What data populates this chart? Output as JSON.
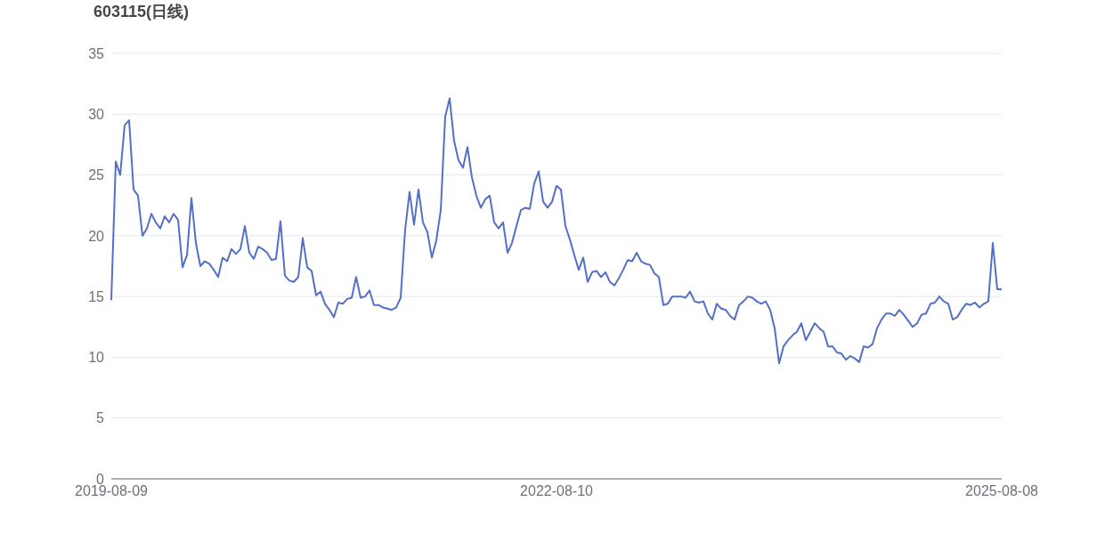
{
  "chart_data": {
    "type": "line",
    "title": "603115(日线)",
    "categories": [
      "2019-08-09",
      null,
      null,
      null,
      null,
      null,
      null,
      null,
      null,
      null,
      null,
      null,
      null,
      null,
      null,
      null,
      null,
      null,
      null,
      null,
      null,
      null,
      null,
      null,
      null,
      null,
      null,
      null,
      null,
      null,
      null,
      null,
      null,
      null,
      null,
      null,
      null,
      null,
      null,
      null,
      null,
      null,
      null,
      null,
      null,
      null,
      null,
      null,
      null,
      null,
      null,
      null,
      null,
      null,
      null,
      null,
      null,
      null,
      null,
      null,
      null,
      null,
      null,
      null,
      null,
      null,
      null,
      null,
      null,
      null,
      null,
      null,
      null,
      null,
      null,
      null,
      null,
      null,
      null,
      null,
      null,
      null,
      null,
      null,
      null,
      null,
      null,
      null,
      null,
      null,
      null,
      null,
      null,
      null,
      null,
      null,
      null,
      null,
      null,
      null,
      "2022-08-10",
      null,
      null,
      null,
      null,
      null,
      null,
      null,
      null,
      null,
      null,
      null,
      null,
      null,
      null,
      null,
      null,
      null,
      null,
      null,
      null,
      null,
      null,
      null,
      null,
      null,
      null,
      null,
      null,
      null,
      null,
      null,
      null,
      null,
      null,
      null,
      null,
      null,
      null,
      null,
      null,
      null,
      null,
      null,
      null,
      null,
      null,
      null,
      null,
      null,
      null,
      null,
      null,
      null,
      null,
      null,
      null,
      null,
      null,
      null,
      null,
      null,
      null,
      null,
      null,
      null,
      null,
      null,
      null,
      null,
      null,
      null,
      null,
      null,
      null,
      null,
      null,
      null,
      null,
      null,
      null,
      null,
      null,
      null,
      null,
      null,
      null,
      null,
      null,
      null,
      null,
      null,
      null,
      null,
      null,
      null,
      null,
      null,
      null,
      null,
      "2025-08-08"
    ],
    "series": [
      {
        "color": "#5470c6",
        "values": [
          14.7,
          26.1,
          25.0,
          29.1,
          29.5,
          23.8,
          23.3,
          20.0,
          20.6,
          21.8,
          21.1,
          20.6,
          21.6,
          21.1,
          21.8,
          21.3,
          17.4,
          18.4,
          23.1,
          19.4,
          17.5,
          17.9,
          17.7,
          17.2,
          16.6,
          18.2,
          17.9,
          18.9,
          18.5,
          18.9,
          20.8,
          18.6,
          18.1,
          19.1,
          18.9,
          18.6,
          18.0,
          18.1,
          21.2,
          16.7,
          16.3,
          16.2,
          16.6,
          19.8,
          17.4,
          17.1,
          15.1,
          15.4,
          14.4,
          13.9,
          13.3,
          14.5,
          14.4,
          14.8,
          14.9,
          16.6,
          14.9,
          15.0,
          15.5,
          14.3,
          14.3,
          14.1,
          14.0,
          13.9,
          14.1,
          14.9,
          20.5,
          23.6,
          20.9,
          23.8,
          21.1,
          20.3,
          18.2,
          19.6,
          22.1,
          29.8,
          31.3,
          27.8,
          26.2,
          25.6,
          27.3,
          24.8,
          23.3,
          22.3,
          23.0,
          23.3,
          21.1,
          20.6,
          21.1,
          18.6,
          19.4,
          20.8,
          22.1,
          22.3,
          22.2,
          24.3,
          25.3,
          22.8,
          22.3,
          22.8,
          24.1,
          23.8,
          20.8,
          19.7,
          18.4,
          17.2,
          18.2,
          16.2,
          17.0,
          17.1,
          16.6,
          17.0,
          16.2,
          15.9,
          16.5,
          17.2,
          18.0,
          17.9,
          18.6,
          17.9,
          17.7,
          17.6,
          16.9,
          16.6,
          14.3,
          14.4,
          15.0,
          15.0,
          15.0,
          14.9,
          15.4,
          14.6,
          14.5,
          14.6,
          13.6,
          13.1,
          14.4,
          14.0,
          13.9,
          13.4,
          13.1,
          14.3,
          14.6,
          15.0,
          14.9,
          14.6,
          14.4,
          14.6,
          13.9,
          12.4,
          9.5,
          10.9,
          11.4,
          11.8,
          12.1,
          12.8,
          11.4,
          12.1,
          12.8,
          12.4,
          12.1,
          10.9,
          10.9,
          10.4,
          10.3,
          9.8,
          10.1,
          9.9,
          9.6,
          10.9,
          10.8,
          11.1,
          12.4,
          13.1,
          13.6,
          13.6,
          13.4,
          13.9,
          13.5,
          13.0,
          12.5,
          12.8,
          13.5,
          13.6,
          14.4,
          14.5,
          15.0,
          14.6,
          14.4,
          13.1,
          13.3,
          13.9,
          14.4,
          14.3,
          14.5,
          14.1,
          14.4,
          14.6,
          19.4,
          15.6,
          15.6
        ]
      }
    ],
    "ylim": [
      0,
      35
    ],
    "yticks": [
      0,
      5,
      10,
      15,
      20,
      25,
      30,
      35
    ],
    "grid": "y",
    "marker": "none",
    "line_style": "solid"
  }
}
